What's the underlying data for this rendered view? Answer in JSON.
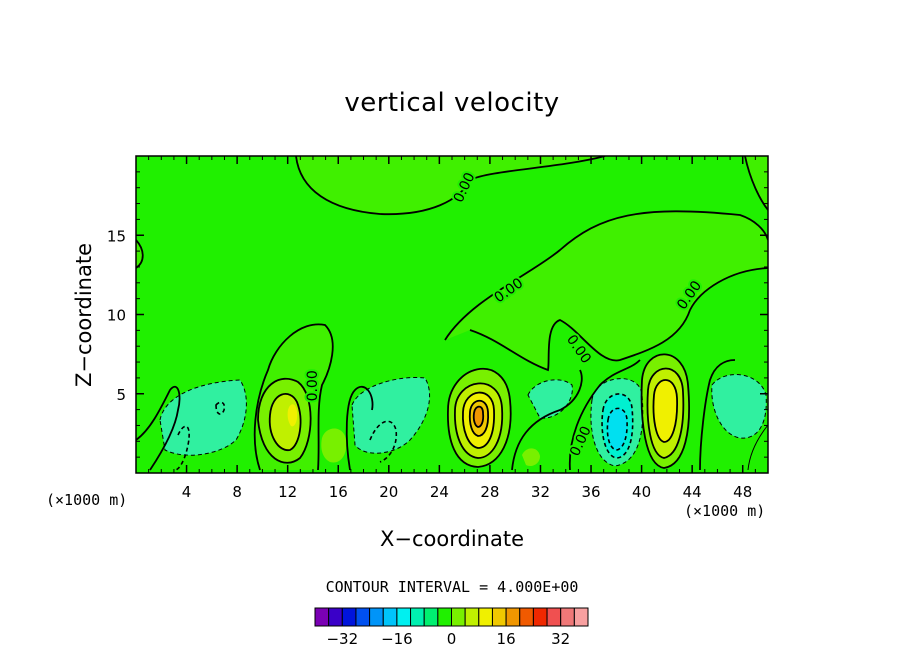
{
  "chart_data": {
    "type": "contour",
    "title": "vertical velocity",
    "xlabel": "X−coordinate",
    "ylabel": "Z−coordinate",
    "x_unit_left": "(×1000 m)",
    "x_unit_right": "(×1000 m)",
    "xlim": [
      0,
      50
    ],
    "ylim": [
      0,
      20
    ],
    "x_ticks": [
      4,
      8,
      12,
      16,
      20,
      24,
      28,
      32,
      36,
      40,
      44,
      48
    ],
    "y_ticks": [
      5,
      10,
      15
    ],
    "contour_labels": [
      "0.00",
      "0.00",
      "0.00",
      "0.00",
      "0.00",
      "0.00"
    ],
    "contour_interval_text": "CONTOUR INTERVAL =  4.000E+00",
    "colorbar": {
      "colors": [
        "#7a00b4",
        "#3a00c8",
        "#0014dc",
        "#0050f0",
        "#0094f8",
        "#00c4fa",
        "#00f0f0",
        "#00f0b0",
        "#00f070",
        "#20f000",
        "#78f000",
        "#c0f000",
        "#f0f000",
        "#f0c800",
        "#f09600",
        "#f05a00",
        "#f02800",
        "#f05050",
        "#f07878",
        "#f8a0a0"
      ],
      "tick_labels": [
        "−32",
        "−16",
        "0",
        "16",
        "32"
      ],
      "tick_values": [
        -32,
        -16,
        0,
        16,
        32
      ],
      "min": -40,
      "max": 40
    },
    "features": [
      {
        "type": "updraft",
        "x": 12.2,
        "z": 3.8,
        "max": 12
      },
      {
        "type": "updraft",
        "x": 26.5,
        "z": 3.5,
        "max": 16
      },
      {
        "type": "updraft",
        "x": 41.5,
        "z": 4.0,
        "max": 12
      },
      {
        "type": "downdraft",
        "x": 37.8,
        "z": 2.7,
        "min": -12
      },
      {
        "type": "downdraft",
        "x": 6.0,
        "z": 3.5,
        "min": -4
      },
      {
        "type": "downdraft",
        "x": 20.0,
        "z": 3.0,
        "min": -4
      },
      {
        "type": "downdraft",
        "x": 47.0,
        "z": 4.0,
        "min": -4
      }
    ]
  }
}
